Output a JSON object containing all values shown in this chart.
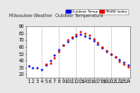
{
  "title": "Milwaukee Weather Outdoor Temperature vs THSW Index per Hour (24 Hours)",
  "background_color": "#e8e8e8",
  "plot_bg_color": "#ffffff",
  "grid_color": "#aaaaaa",
  "temp_color": "#0000dd",
  "thsw_color": "#dd0000",
  "legend_temp_label": "Outdoor Temp",
  "legend_thsw_label": "THSW Index",
  "xlim": [
    0.5,
    24.5
  ],
  "ylim": [
    15,
    90
  ],
  "x_ticks": [
    1,
    2,
    3,
    4,
    5,
    6,
    7,
    8,
    9,
    10,
    11,
    12,
    13,
    14,
    15,
    16,
    17,
    18,
    19,
    20,
    21,
    22,
    23,
    24
  ],
  "y_ticks": [
    20,
    30,
    40,
    50,
    60,
    70,
    80,
    90
  ],
  "vgrid_positions": [
    4,
    8,
    12,
    16,
    20
  ],
  "temp_data": [
    [
      1,
      32
    ],
    [
      2,
      30
    ],
    [
      3,
      29
    ],
    [
      4,
      27
    ],
    [
      5,
      34
    ],
    [
      6,
      40
    ],
    [
      7,
      48
    ],
    [
      8,
      56
    ],
    [
      9,
      63
    ],
    [
      10,
      68
    ],
    [
      11,
      73
    ],
    [
      12,
      76
    ],
    [
      13,
      78
    ],
    [
      14,
      76
    ],
    [
      15,
      73
    ],
    [
      16,
      69
    ],
    [
      17,
      64
    ],
    [
      18,
      59
    ],
    [
      19,
      54
    ],
    [
      20,
      50
    ],
    [
      21,
      46
    ],
    [
      22,
      41
    ],
    [
      23,
      38
    ],
    [
      24,
      34
    ]
  ],
  "thsw_data": [
    [
      5,
      35
    ],
    [
      6,
      36
    ],
    [
      7,
      44
    ],
    [
      8,
      53
    ],
    [
      9,
      62
    ],
    [
      10,
      70
    ],
    [
      11,
      75
    ],
    [
      12,
      79
    ],
    [
      13,
      82
    ],
    [
      14,
      80
    ],
    [
      15,
      77
    ],
    [
      16,
      72
    ],
    [
      17,
      66
    ],
    [
      18,
      60
    ],
    [
      19,
      55
    ],
    [
      20,
      50
    ],
    [
      21,
      45
    ],
    [
      22,
      39
    ],
    [
      23,
      35
    ],
    [
      24,
      31
    ]
  ],
  "marker_size": 3,
  "tick_fontsize": 3.5,
  "title_fontsize": 4.5
}
